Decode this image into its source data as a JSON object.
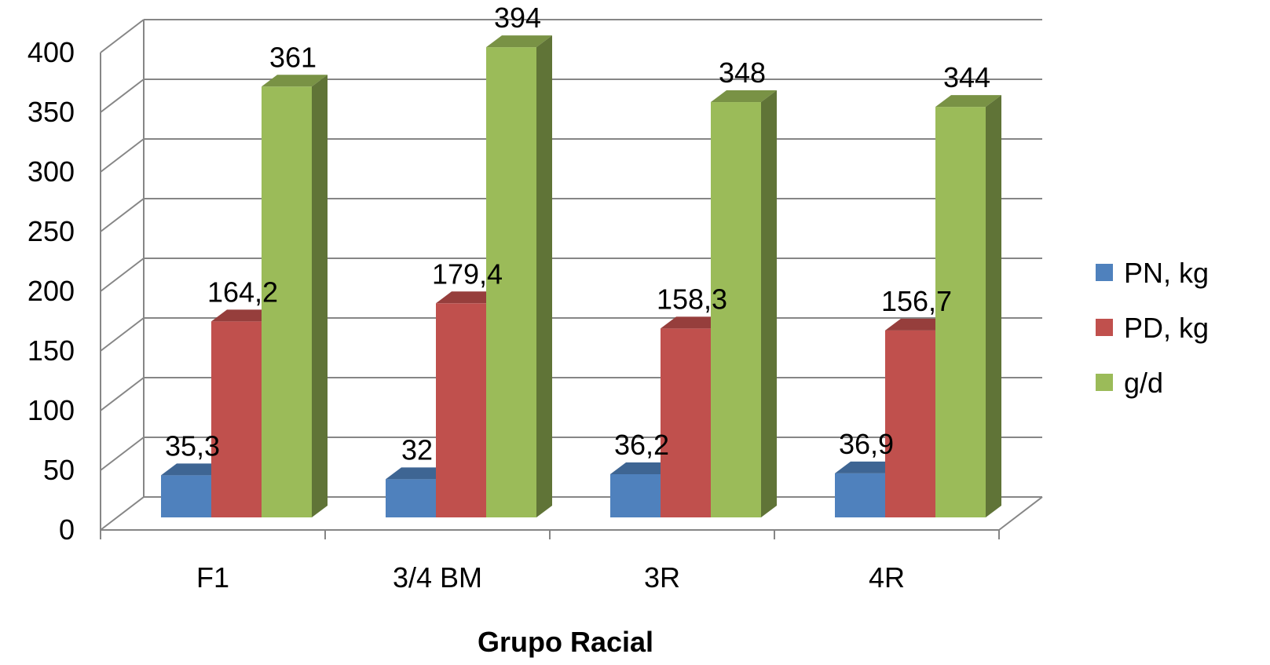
{
  "chart_data": {
    "type": "bar",
    "variant": "3d-clustered-column",
    "title": "",
    "xlabel": "Grupo Racial",
    "ylabel": "",
    "ylim": [
      0,
      400
    ],
    "yticks": [
      "0",
      "50",
      "100",
      "150",
      "200",
      "250",
      "300",
      "350",
      "400"
    ],
    "categories": [
      "F1",
      "3/4 BM",
      "3R",
      "4R"
    ],
    "series": [
      {
        "name": "PN, kg",
        "values": [
          35.3,
          32,
          36.2,
          36.9
        ],
        "labels": [
          "35,3",
          "32",
          "36,2",
          "36,9"
        ],
        "color": "#4F81BD"
      },
      {
        "name": "PD, kg",
        "values": [
          164.2,
          179.4,
          158.3,
          156.7
        ],
        "labels": [
          "164,2",
          "179,4",
          "158,3",
          "156,7"
        ],
        "color": "#C0504D"
      },
      {
        "name": "g/d",
        "values": [
          361,
          394,
          348,
          344
        ],
        "labels": [
          "361",
          "394",
          "348",
          "344"
        ],
        "color": "#9BBB59"
      }
    ],
    "grid": true,
    "legend": "right"
  }
}
